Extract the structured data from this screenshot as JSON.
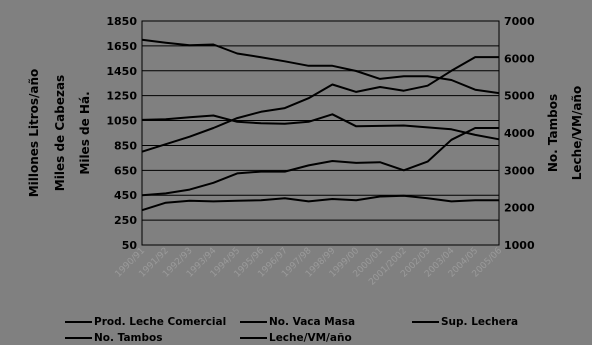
{
  "chart_data": {
    "type": "line",
    "title": "",
    "categories": [
      "1990/91",
      "1991/92",
      "1992/93",
      "1993/94",
      "1994/95",
      "1995/96",
      "1996/97",
      "1997/98",
      "1998/99",
      "1999/00",
      "2000/01",
      "2001/2002",
      "2002/03",
      "2003/04",
      "2004/05",
      "2005/06"
    ],
    "left_axis": {
      "labels": [
        "Millones Litros/año",
        "Miles de Cabezas",
        "Miles de Há."
      ],
      "ylim": [
        50,
        1850
      ],
      "ticks": [
        "50",
        "250",
        "450",
        "650",
        "850",
        "1050",
        "1250",
        "1450",
        "1650",
        "1850"
      ]
    },
    "right_axis": {
      "labels": [
        "No. Tambos",
        "Leche/VM/año"
      ],
      "ylim": [
        1000,
        7000
      ],
      "ticks": [
        "1000",
        "2000",
        "3000",
        "4000",
        "5000",
        "6000",
        "7000"
      ]
    },
    "grid": true,
    "legend_position": "bottom",
    "series": [
      {
        "name": "Prod. Leche Comercial",
        "axis": "left",
        "values": [
          800,
          860,
          920,
          990,
          1070,
          1120,
          1150,
          1230,
          1340,
          1280,
          1320,
          1290,
          1330,
          1450,
          1560,
          1560
        ]
      },
      {
        "name": "No. Vaca Masa",
        "axis": "left",
        "values": [
          330,
          390,
          405,
          400,
          405,
          410,
          425,
          400,
          420,
          410,
          440,
          445,
          425,
          400,
          410,
          410
        ]
      },
      {
        "name": "Sup. Lechera",
        "axis": "left",
        "values": [
          450,
          465,
          495,
          550,
          625,
          640,
          640,
          690,
          725,
          710,
          715,
          650,
          720,
          895,
          990,
          990
        ]
      },
      {
        "name": "No. Tambos",
        "axis": "right",
        "values": [
          6500,
          6420,
          6350,
          6370,
          6130,
          6030,
          5920,
          5800,
          5800,
          5660,
          5450,
          5520,
          5520,
          5420,
          5160,
          5070
        ]
      },
      {
        "name": "Leche/VM/año",
        "axis": "right",
        "values": [
          4350,
          4370,
          4420,
          4470,
          4300,
          4260,
          4250,
          4300,
          4500,
          4180,
          4190,
          4200,
          4150,
          4100,
          3950,
          3830
        ]
      }
    ]
  }
}
